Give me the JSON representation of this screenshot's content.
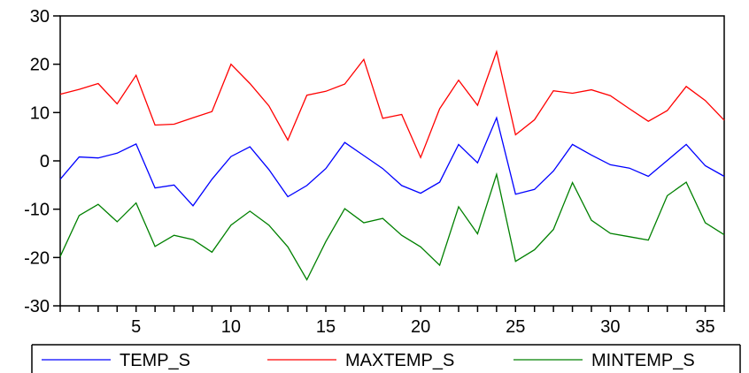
{
  "chart_data": {
    "type": "line",
    "x": [
      1,
      2,
      3,
      4,
      5,
      6,
      7,
      8,
      9,
      10,
      11,
      12,
      13,
      14,
      15,
      16,
      17,
      18,
      19,
      20,
      21,
      22,
      23,
      24,
      25,
      26,
      27,
      28,
      29,
      30,
      31,
      32,
      33,
      34,
      35,
      36
    ],
    "xticks": [
      5,
      10,
      15,
      20,
      25,
      30,
      35
    ],
    "xlim": [
      1,
      36
    ],
    "yticks": [
      -30,
      -20,
      -10,
      0,
      10,
      20,
      30
    ],
    "ylim": [
      -30,
      30
    ],
    "grid": false,
    "legend_position": "bottom",
    "series": [
      {
        "name": "TEMP_S",
        "color": "#0000ff",
        "values": [
          -3.8,
          0.8,
          0.6,
          1.6,
          3.5,
          -5.6,
          -5.0,
          -9.3,
          -3.8,
          0.9,
          2.9,
          -1.8,
          -7.4,
          -5.1,
          -1.6,
          3.8,
          1.1,
          -1.6,
          -5.1,
          -6.7,
          -4.4,
          3.4,
          -0.4,
          8.9,
          -6.9,
          -5.9,
          -2.1,
          3.4,
          1.2,
          -0.8,
          -1.5,
          -3.2,
          0.1,
          3.4,
          -1.0,
          -3.2
        ]
      },
      {
        "name": "MAXTEMP_S",
        "color": "#ff0000",
        "values": [
          13.8,
          14.8,
          16.0,
          11.8,
          17.7,
          7.4,
          7.6,
          8.9,
          10.2,
          20.0,
          16.0,
          11.4,
          4.3,
          13.6,
          14.4,
          15.9,
          21.0,
          8.8,
          9.6,
          0.7,
          10.8,
          16.7,
          11.5,
          22.6,
          5.4,
          8.5,
          14.5,
          14.0,
          14.7,
          13.5,
          10.8,
          8.2,
          10.4,
          15.4,
          12.5,
          8.4
        ]
      },
      {
        "name": "MINTEMP_S",
        "color": "#008000",
        "values": [
          -19.8,
          -11.3,
          -9.0,
          -12.6,
          -8.7,
          -17.7,
          -15.4,
          -16.3,
          -18.9,
          -13.3,
          -10.4,
          -13.3,
          -17.8,
          -24.6,
          -16.7,
          -9.9,
          -12.8,
          -11.9,
          -15.4,
          -17.8,
          -21.6,
          -9.5,
          -15.1,
          -2.8,
          -20.8,
          -18.4,
          -14.2,
          -4.5,
          -12.3,
          -15.0,
          -15.7,
          -16.4,
          -7.2,
          -4.4,
          -12.8,
          -15.3
        ]
      }
    ]
  }
}
